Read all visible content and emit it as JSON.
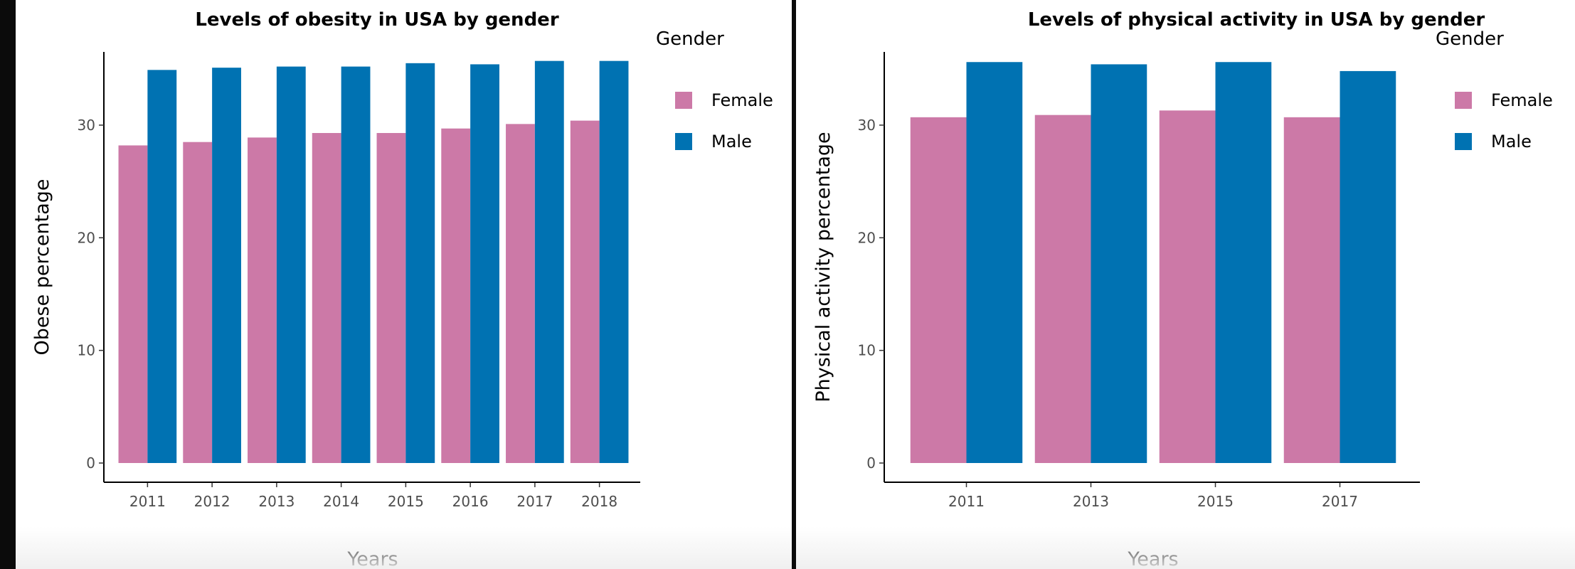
{
  "chart_data": [
    {
      "type": "bar",
      "title": "Levels of obesity in USA by gender",
      "xlabel": "Years",
      "ylabel": "Obese percentage",
      "categories": [
        "2011",
        "2012",
        "2013",
        "2014",
        "2015",
        "2016",
        "2017",
        "2018"
      ],
      "series": [
        {
          "name": "Female",
          "color": "#CC79A7",
          "values": [
            28.2,
            28.5,
            28.9,
            29.3,
            29.3,
            29.7,
            30.1,
            30.4
          ]
        },
        {
          "name": "Male",
          "color": "#0072B2",
          "values": [
            34.9,
            35.1,
            35.2,
            35.2,
            35.5,
            35.4,
            35.7,
            35.7
          ]
        }
      ],
      "yticks": [
        0,
        10,
        20,
        30
      ],
      "ylim": [
        0,
        36.5
      ],
      "legend": {
        "title": "Gender",
        "placement": "right"
      },
      "grid": false
    },
    {
      "type": "bar",
      "title": "Levels of physical activity in USA by gender",
      "xlabel": "Years",
      "ylabel": "Physical activity percentage",
      "categories": [
        "2011",
        "2013",
        "2015",
        "2017"
      ],
      "series": [
        {
          "name": "Female",
          "color": "#CC79A7",
          "values": [
            30.7,
            30.9,
            31.3,
            30.7
          ]
        },
        {
          "name": "Male",
          "color": "#0072B2",
          "values": [
            35.6,
            35.4,
            35.6,
            34.8
          ]
        }
      ],
      "yticks": [
        0,
        10,
        20,
        30
      ],
      "ylim": [
        0,
        36.5
      ],
      "legend": {
        "title": "Gender",
        "placement": "right"
      },
      "grid": false
    }
  ]
}
